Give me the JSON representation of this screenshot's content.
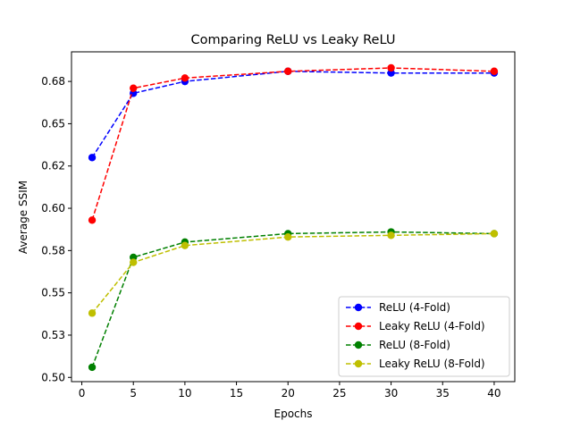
{
  "chart_data": {
    "type": "line",
    "title": "Comparing ReLU vs Leaky ReLU",
    "xlabel": "Epochs",
    "ylabel": "Average SSIM",
    "x": [
      1,
      5,
      10,
      20,
      30,
      40
    ],
    "xlim": [
      -1,
      42
    ],
    "ylim": [
      0.4975,
      0.6925
    ],
    "xticks": [
      0,
      5,
      10,
      15,
      20,
      25,
      30,
      35,
      40
    ],
    "yticks": [
      0.5,
      0.525,
      0.55,
      0.575,
      0.6,
      0.625,
      0.65,
      0.675
    ],
    "ytick_labels": [
      "0.50",
      "0.53",
      "0.55",
      "0.58",
      "0.60",
      "0.62",
      "0.65",
      "0.68"
    ],
    "grid": false,
    "legend_position": "lower-right",
    "series": [
      {
        "name": "ReLU (4-Fold)",
        "color": "#0000ff",
        "values": [
          0.63,
          0.668,
          0.675,
          0.681,
          0.68,
          0.68
        ]
      },
      {
        "name": "Leaky ReLU (4-Fold)",
        "color": "#ff0000",
        "values": [
          0.593,
          0.671,
          0.677,
          0.681,
          0.683,
          0.681
        ]
      },
      {
        "name": "ReLU (8-Fold)",
        "color": "#008000",
        "values": [
          0.506,
          0.571,
          0.58,
          0.585,
          0.586,
          0.585
        ]
      },
      {
        "name": "Leaky ReLU (8-Fold)",
        "color": "#bfbf00",
        "values": [
          0.538,
          0.568,
          0.578,
          0.583,
          0.584,
          0.585
        ]
      }
    ]
  }
}
